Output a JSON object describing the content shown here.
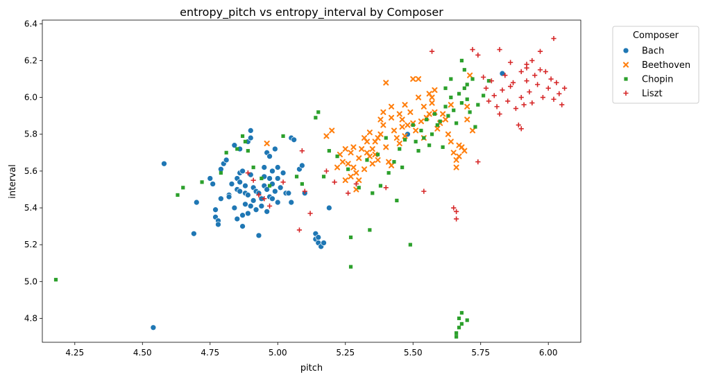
{
  "chart_data": {
    "type": "scatter",
    "title": "entropy_pitch vs entropy_interval by Composer",
    "xlabel": "pitch",
    "ylabel": "interval",
    "xlim": [
      4.13,
      6.12
    ],
    "ylim": [
      4.67,
      6.42
    ],
    "xticks": [
      4.25,
      4.5,
      4.75,
      5.0,
      5.25,
      5.5,
      5.75,
      6.0
    ],
    "xtick_labels": [
      "4.25",
      "4.50",
      "4.75",
      "5.00",
      "5.25",
      "5.50",
      "5.75",
      "6.00"
    ],
    "yticks": [
      4.8,
      5.0,
      5.2,
      5.4,
      5.6,
      5.8,
      6.0,
      6.2,
      6.4
    ],
    "ytick_labels": [
      "4.8",
      "5.0",
      "5.2",
      "5.4",
      "5.6",
      "5.8",
      "6.0",
      "6.2",
      "6.4"
    ],
    "grid": false,
    "legend": {
      "title": "Composer",
      "placement": "upper-right-outside"
    },
    "series": [
      {
        "name": "Bach",
        "color": "#1f77b4",
        "marker": "circle",
        "points": [
          [
            4.54,
            4.75
          ],
          [
            4.58,
            5.64
          ],
          [
            4.69,
            5.26
          ],
          [
            4.7,
            5.43
          ],
          [
            4.75,
            5.56
          ],
          [
            4.76,
            5.53
          ],
          [
            4.77,
            5.35
          ],
          [
            4.77,
            5.39
          ],
          [
            4.78,
            5.33
          ],
          [
            4.78,
            5.31
          ],
          [
            4.79,
            5.45
          ],
          [
            4.79,
            5.61
          ],
          [
            4.8,
            5.64
          ],
          [
            4.81,
            5.66
          ],
          [
            4.82,
            5.47
          ],
          [
            4.82,
            5.46
          ],
          [
            4.83,
            5.53
          ],
          [
            4.84,
            5.74
          ],
          [
            4.84,
            5.4
          ],
          [
            4.85,
            5.5
          ],
          [
            4.85,
            5.56
          ],
          [
            4.85,
            5.34
          ],
          [
            4.86,
            5.49
          ],
          [
            4.86,
            5.54
          ],
          [
            4.86,
            5.59
          ],
          [
            4.86,
            5.72
          ],
          [
            4.87,
            5.6
          ],
          [
            4.87,
            5.36
          ],
          [
            4.87,
            5.3
          ],
          [
            4.88,
            5.42
          ],
          [
            4.88,
            5.52
          ],
          [
            4.88,
            5.48
          ],
          [
            4.89,
            5.76
          ],
          [
            4.89,
            5.47
          ],
          [
            4.89,
            5.37
          ],
          [
            4.9,
            5.82
          ],
          [
            4.9,
            5.78
          ],
          [
            4.9,
            5.58
          ],
          [
            4.9,
            5.41
          ],
          [
            4.91,
            5.51
          ],
          [
            4.91,
            5.44
          ],
          [
            4.92,
            5.49
          ],
          [
            4.92,
            5.39
          ],
          [
            4.93,
            5.25
          ],
          [
            4.93,
            5.48
          ],
          [
            4.94,
            5.45
          ],
          [
            4.94,
            5.41
          ],
          [
            4.95,
            5.57
          ],
          [
            4.95,
            5.62
          ],
          [
            4.95,
            5.52
          ],
          [
            4.96,
            5.7
          ],
          [
            4.96,
            5.5
          ],
          [
            4.96,
            5.38
          ],
          [
            4.97,
            5.46
          ],
          [
            4.97,
            5.56
          ],
          [
            4.97,
            5.68
          ],
          [
            4.98,
            5.6
          ],
          [
            4.98,
            5.53
          ],
          [
            4.98,
            5.45
          ],
          [
            4.99,
            5.72
          ],
          [
            4.99,
            5.49
          ],
          [
            5.0,
            5.62
          ],
          [
            5.0,
            5.56
          ],
          [
            5.0,
            5.43
          ],
          [
            5.01,
            5.51
          ],
          [
            5.02,
            5.59
          ],
          [
            5.03,
            5.48
          ],
          [
            5.04,
            5.48
          ],
          [
            5.05,
            5.43
          ],
          [
            5.05,
            5.78
          ],
          [
            5.06,
            5.77
          ],
          [
            5.08,
            5.61
          ],
          [
            5.09,
            5.63
          ],
          [
            5.1,
            5.48
          ],
          [
            5.14,
            5.26
          ],
          [
            5.14,
            5.23
          ],
          [
            5.15,
            5.24
          ],
          [
            5.15,
            5.21
          ],
          [
            5.16,
            5.19
          ],
          [
            5.17,
            5.21
          ],
          [
            5.19,
            5.4
          ],
          [
            5.83,
            6.13
          ],
          [
            5.48,
            5.8
          ]
        ]
      },
      {
        "name": "Beethoven",
        "color": "#ff7f0e",
        "marker": "x",
        "points": [
          [
            4.96,
            5.75
          ],
          [
            5.18,
            5.79
          ],
          [
            5.2,
            5.82
          ],
          [
            5.22,
            5.62
          ],
          [
            5.23,
            5.69
          ],
          [
            5.24,
            5.65
          ],
          [
            5.25,
            5.55
          ],
          [
            5.25,
            5.72
          ],
          [
            5.26,
            5.64
          ],
          [
            5.27,
            5.57
          ],
          [
            5.27,
            5.7
          ],
          [
            5.28,
            5.73
          ],
          [
            5.28,
            5.62
          ],
          [
            5.29,
            5.59
          ],
          [
            5.29,
            5.5
          ],
          [
            5.3,
            5.67
          ],
          [
            5.3,
            5.55
          ],
          [
            5.31,
            5.72
          ],
          [
            5.32,
            5.78
          ],
          [
            5.32,
            5.61
          ],
          [
            5.33,
            5.76
          ],
          [
            5.33,
            5.7
          ],
          [
            5.34,
            5.81
          ],
          [
            5.34,
            5.68
          ],
          [
            5.35,
            5.72
          ],
          [
            5.35,
            5.64
          ],
          [
            5.36,
            5.76
          ],
          [
            5.36,
            5.69
          ],
          [
            5.37,
            5.66
          ],
          [
            5.37,
            5.78
          ],
          [
            5.38,
            5.88
          ],
          [
            5.38,
            5.8
          ],
          [
            5.39,
            5.92
          ],
          [
            5.39,
            5.85
          ],
          [
            5.4,
            5.73
          ],
          [
            5.41,
            5.65
          ],
          [
            5.42,
            5.89
          ],
          [
            5.42,
            5.95
          ],
          [
            5.43,
            5.82
          ],
          [
            5.44,
            5.78
          ],
          [
            5.45,
            5.91
          ],
          [
            5.45,
            5.75
          ],
          [
            5.46,
            5.88
          ],
          [
            5.46,
            5.84
          ],
          [
            5.47,
            5.96
          ],
          [
            5.47,
            5.79
          ],
          [
            5.48,
            5.85
          ],
          [
            5.49,
            5.92
          ],
          [
            5.5,
            5.86
          ],
          [
            5.5,
            6.1
          ],
          [
            5.51,
            5.82
          ],
          [
            5.52,
            6.0
          ],
          [
            5.53,
            5.87
          ],
          [
            5.54,
            5.95
          ],
          [
            5.54,
            5.78
          ],
          [
            5.55,
            5.89
          ],
          [
            5.56,
            6.02
          ],
          [
            5.56,
            5.91
          ],
          [
            5.57,
            6.0
          ],
          [
            5.57,
            5.97
          ],
          [
            5.58,
            6.04
          ],
          [
            5.58,
            5.92
          ],
          [
            5.59,
            5.83
          ],
          [
            5.6,
            5.86
          ],
          [
            5.61,
            5.91
          ],
          [
            5.62,
            5.88
          ],
          [
            5.63,
            5.8
          ],
          [
            5.64,
            5.76
          ],
          [
            5.64,
            5.96
          ],
          [
            5.65,
            5.7
          ],
          [
            5.66,
            5.66
          ],
          [
            5.66,
            5.62
          ],
          [
            5.67,
            5.74
          ],
          [
            5.67,
            5.68
          ],
          [
            5.68,
            5.73
          ],
          [
            5.69,
            5.71
          ],
          [
            5.7,
            5.88
          ],
          [
            5.7,
            5.95
          ],
          [
            5.71,
            6.12
          ],
          [
            5.72,
            5.82
          ],
          [
            5.4,
            6.08
          ],
          [
            5.42,
            5.63
          ],
          [
            5.52,
            6.1
          ]
        ]
      },
      {
        "name": "Chopin",
        "color": "#2ca02c",
        "marker": "square",
        "points": [
          [
            4.18,
            5.01
          ],
          [
            4.63,
            5.47
          ],
          [
            4.65,
            5.51
          ],
          [
            4.72,
            5.54
          ],
          [
            4.79,
            5.59
          ],
          [
            4.81,
            5.7
          ],
          [
            4.85,
            5.72
          ],
          [
            4.87,
            5.79
          ],
          [
            4.88,
            5.76
          ],
          [
            4.89,
            5.71
          ],
          [
            4.91,
            5.62
          ],
          [
            4.94,
            5.56
          ],
          [
            4.97,
            5.52
          ],
          [
            5.02,
            5.79
          ],
          [
            5.07,
            5.57
          ],
          [
            5.09,
            5.53
          ],
          [
            5.14,
            5.89
          ],
          [
            5.15,
            5.92
          ],
          [
            5.17,
            5.57
          ],
          [
            5.19,
            5.71
          ],
          [
            5.22,
            5.68
          ],
          [
            5.26,
            5.61
          ],
          [
            5.27,
            5.24
          ],
          [
            5.27,
            5.08
          ],
          [
            5.3,
            5.51
          ],
          [
            5.33,
            5.66
          ],
          [
            5.34,
            5.28
          ],
          [
            5.35,
            5.48
          ],
          [
            5.37,
            5.69
          ],
          [
            5.38,
            5.52
          ],
          [
            5.4,
            5.78
          ],
          [
            5.41,
            5.59
          ],
          [
            5.43,
            5.65
          ],
          [
            5.44,
            5.44
          ],
          [
            5.45,
            5.72
          ],
          [
            5.46,
            5.62
          ],
          [
            5.47,
            5.77
          ],
          [
            5.49,
            5.2
          ],
          [
            5.5,
            5.85
          ],
          [
            5.51,
            5.76
          ],
          [
            5.52,
            5.71
          ],
          [
            5.53,
            5.82
          ],
          [
            5.54,
            5.78
          ],
          [
            5.55,
            5.88
          ],
          [
            5.56,
            5.74
          ],
          [
            5.57,
            5.8
          ],
          [
            5.58,
            5.91
          ],
          [
            5.59,
            5.85
          ],
          [
            5.6,
            5.87
          ],
          [
            5.61,
            5.73
          ],
          [
            5.62,
            5.95
          ],
          [
            5.63,
            5.9
          ],
          [
            5.64,
            6.0
          ],
          [
            5.65,
            5.93
          ],
          [
            5.66,
            5.86
          ],
          [
            5.67,
            6.02
          ],
          [
            5.68,
            5.97
          ],
          [
            5.68,
            6.2
          ],
          [
            5.69,
            6.05
          ],
          [
            5.7,
            5.99
          ],
          [
            5.7,
            6.07
          ],
          [
            5.71,
            5.92
          ],
          [
            5.72,
            6.1
          ],
          [
            5.73,
            5.84
          ],
          [
            5.74,
            5.96
          ],
          [
            5.76,
            6.01
          ],
          [
            5.78,
            6.09
          ],
          [
            5.66,
            4.72
          ],
          [
            5.67,
            4.75
          ],
          [
            5.67,
            4.8
          ],
          [
            5.68,
            4.77
          ],
          [
            5.68,
            4.83
          ],
          [
            5.7,
            4.79
          ],
          [
            5.66,
            4.7
          ],
          [
            5.62,
            6.05
          ],
          [
            5.64,
            6.1
          ],
          [
            5.69,
            6.15
          ]
        ]
      },
      {
        "name": "Liszt",
        "color": "#d62728",
        "marker": "plus",
        "points": [
          [
            4.89,
            5.59
          ],
          [
            4.91,
            5.55
          ],
          [
            4.93,
            5.47
          ],
          [
            4.95,
            5.45
          ],
          [
            4.97,
            5.41
          ],
          [
            5.02,
            5.54
          ],
          [
            5.08,
            5.28
          ],
          [
            5.09,
            5.71
          ],
          [
            5.1,
            5.49
          ],
          [
            5.12,
            5.37
          ],
          [
            5.18,
            5.6
          ],
          [
            5.21,
            5.54
          ],
          [
            5.26,
            5.48
          ],
          [
            5.29,
            5.53
          ],
          [
            5.4,
            5.51
          ],
          [
            5.54,
            5.49
          ],
          [
            5.57,
            6.25
          ],
          [
            5.65,
            5.4
          ],
          [
            5.66,
            5.34
          ],
          [
            5.66,
            5.38
          ],
          [
            5.72,
            6.26
          ],
          [
            5.74,
            6.23
          ],
          [
            5.74,
            5.65
          ],
          [
            5.76,
            6.11
          ],
          [
            5.77,
            6.05
          ],
          [
            5.78,
            5.98
          ],
          [
            5.79,
            6.09
          ],
          [
            5.8,
            6.01
          ],
          [
            5.81,
            5.95
          ],
          [
            5.82,
            6.26
          ],
          [
            5.82,
            5.91
          ],
          [
            5.83,
            6.04
          ],
          [
            5.84,
            6.12
          ],
          [
            5.85,
            5.98
          ],
          [
            5.86,
            6.19
          ],
          [
            5.86,
            6.06
          ],
          [
            5.87,
            6.08
          ],
          [
            5.88,
            5.94
          ],
          [
            5.89,
            5.85
          ],
          [
            5.9,
            6.14
          ],
          [
            5.9,
            6.0
          ],
          [
            5.91,
            5.96
          ],
          [
            5.92,
            6.18
          ],
          [
            5.92,
            6.09
          ],
          [
            5.93,
            6.03
          ],
          [
            5.94,
            6.2
          ],
          [
            5.94,
            5.97
          ],
          [
            5.95,
            6.12
          ],
          [
            5.96,
            6.07
          ],
          [
            5.97,
            6.25
          ],
          [
            5.98,
            6.0
          ],
          [
            5.99,
            6.14
          ],
          [
            6.0,
            6.05
          ],
          [
            6.01,
            6.1
          ],
          [
            6.02,
            5.99
          ],
          [
            6.02,
            6.32
          ],
          [
            6.03,
            6.08
          ],
          [
            6.04,
            6.02
          ],
          [
            6.05,
            5.96
          ],
          [
            6.06,
            6.05
          ],
          [
            5.9,
            5.83
          ],
          [
            5.92,
            6.16
          ],
          [
            5.97,
            6.15
          ]
        ]
      }
    ]
  }
}
